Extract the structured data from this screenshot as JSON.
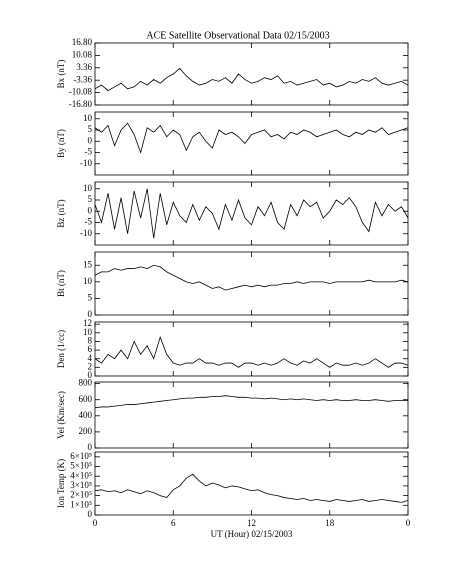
{
  "chart_data": [
    {
      "type": "line",
      "title": "ACE Satellite Observational Data   02/15/2003",
      "ylabel": "Bx (nT)",
      "x": [
        0,
        0.5,
        1,
        1.5,
        2,
        2.5,
        3,
        3.5,
        4,
        4.5,
        5,
        5.5,
        6,
        6.5,
        7,
        7.5,
        8,
        8.5,
        9,
        9.5,
        10,
        10.5,
        11,
        11.5,
        12,
        12.5,
        13,
        13.5,
        14,
        14.5,
        15,
        15.5,
        16,
        16.5,
        17,
        17.5,
        18,
        18.5,
        19,
        19.5,
        20,
        20.5,
        21,
        21.5,
        22,
        22.5,
        23,
        23.5,
        24
      ],
      "values": [
        -8,
        -6,
        -9,
        -7,
        -5,
        -8,
        -7,
        -4,
        -6,
        -3,
        -5,
        -2,
        0,
        3,
        -1,
        -4,
        -6,
        -5,
        -3,
        -4,
        -2,
        -5,
        0,
        -3,
        -5,
        -4,
        -2,
        -3,
        -1,
        -5,
        -4,
        -6,
        -5,
        -4,
        -3,
        -6,
        -5,
        -7,
        -6,
        -4,
        -5,
        -3,
        -4,
        -2,
        -5,
        -6,
        -5,
        -4,
        -6
      ],
      "color": "#000000",
      "ylim": [
        -16.8,
        16.8
      ],
      "yticks": [
        {
          "value": -16.8,
          "label": "-16.80"
        },
        -10.08,
        -3.36,
        3.36,
        10.08,
        {
          "value": 16.8,
          "label": "16.80"
        }
      ]
    },
    {
      "type": "line",
      "ylabel": "By (nT)",
      "x": [
        0,
        0.5,
        1,
        1.5,
        2,
        2.5,
        3,
        3.5,
        4,
        4.5,
        5,
        5.5,
        6,
        6.5,
        7,
        7.5,
        8,
        8.5,
        9,
        9.5,
        10,
        10.5,
        11,
        11.5,
        12,
        12.5,
        13,
        13.5,
        14,
        14.5,
        15,
        15.5,
        16,
        16.5,
        17,
        17.5,
        18,
        18.5,
        19,
        19.5,
        20,
        20.5,
        21,
        21.5,
        22,
        22.5,
        23,
        23.5,
        24
      ],
      "values": [
        6,
        4,
        7,
        -2,
        5,
        8,
        3,
        -5,
        6,
        4,
        7,
        2,
        5,
        3,
        -4,
        2,
        4,
        0,
        -3,
        5,
        3,
        4,
        2,
        -1,
        3,
        4,
        5,
        2,
        3,
        1,
        4,
        3,
        5,
        4,
        2,
        3,
        4,
        5,
        3,
        2,
        4,
        3,
        5,
        4,
        6,
        3,
        4,
        5,
        6
      ],
      "color": "#000000",
      "ylim": [
        -15,
        13
      ],
      "yticks": [
        -10,
        -5,
        0,
        5,
        10
      ]
    },
    {
      "type": "line",
      "ylabel": "Bz (nT)",
      "x": [
        0,
        0.5,
        1,
        1.5,
        2,
        2.5,
        3,
        3.5,
        4,
        4.5,
        5,
        5.5,
        6,
        6.5,
        7,
        7.5,
        8,
        8.5,
        9,
        9.5,
        10,
        10.5,
        11,
        11.5,
        12,
        12.5,
        13,
        13.5,
        14,
        14.5,
        15,
        15.5,
        16,
        16.5,
        17,
        17.5,
        18,
        18.5,
        19,
        19.5,
        20,
        20.5,
        21,
        21.5,
        22,
        22.5,
        23,
        23.5,
        24
      ],
      "values": [
        3,
        -5,
        8,
        -8,
        6,
        -10,
        9,
        -3,
        10,
        -12,
        8,
        -6,
        4,
        -2,
        -5,
        3,
        -4,
        2,
        -1,
        -8,
        3,
        -4,
        5,
        -3,
        -6,
        2,
        -2,
        4,
        -5,
        -8,
        3,
        -2,
        5,
        2,
        4,
        -3,
        0,
        5,
        3,
        6,
        2,
        -5,
        -9,
        4,
        -2,
        3,
        0,
        2,
        -3
      ],
      "color": "#000000",
      "ylim": [
        -15,
        13
      ],
      "yticks": [
        -10,
        -5,
        0,
        5,
        10
      ]
    },
    {
      "type": "line",
      "ylabel": "Bt (nT)",
      "x": [
        0,
        0.5,
        1,
        1.5,
        2,
        2.5,
        3,
        3.5,
        4,
        4.5,
        5,
        5.5,
        6,
        6.5,
        7,
        7.5,
        8,
        8.5,
        9,
        9.5,
        10,
        10.5,
        11,
        11.5,
        12,
        12.5,
        13,
        13.5,
        14,
        14.5,
        15,
        15.5,
        16,
        16.5,
        17,
        17.5,
        18,
        18.5,
        19,
        19.5,
        20,
        20.5,
        21,
        21.5,
        22,
        22.5,
        23,
        23.5,
        24
      ],
      "values": [
        12,
        13,
        13,
        14,
        13.5,
        14,
        14,
        14.5,
        14,
        15,
        14.5,
        13,
        12,
        11,
        10,
        9.5,
        10,
        9,
        8,
        8.5,
        7.5,
        8,
        8.5,
        9,
        8.5,
        9,
        8.5,
        9,
        9,
        9.5,
        9.5,
        10,
        9.5,
        10,
        10,
        10,
        9.5,
        10,
        10,
        10,
        10,
        10,
        10.5,
        10,
        10,
        10,
        10,
        10.5,
        10
      ],
      "color": "#000000",
      "ylim": [
        0,
        19
      ],
      "yticks": [
        0,
        5,
        10,
        15
      ]
    },
    {
      "type": "line",
      "ylabel": "Den (1/cc)",
      "x": [
        0,
        0.5,
        1,
        1.5,
        2,
        2.5,
        3,
        3.5,
        4,
        4.5,
        5,
        5.5,
        6,
        6.5,
        7,
        7.5,
        8,
        8.5,
        9,
        9.5,
        10,
        10.5,
        11,
        11.5,
        12,
        12.5,
        13,
        13.5,
        14,
        14.5,
        15,
        15.5,
        16,
        16.5,
        17,
        17.5,
        18,
        18.5,
        19,
        19.5,
        20,
        20.5,
        21,
        21.5,
        22,
        22.5,
        23,
        23.5,
        24
      ],
      "values": [
        4,
        3,
        5,
        4,
        6,
        4,
        8,
        5,
        7,
        4,
        9,
        5,
        3,
        2.5,
        3,
        3,
        4,
        3,
        3,
        2.5,
        3,
        3,
        2,
        3,
        3,
        2.5,
        3,
        2.5,
        3,
        4,
        3,
        2.5,
        3.5,
        3,
        4,
        3,
        2,
        3,
        2.5,
        2.5,
        3,
        2.5,
        3,
        4,
        3,
        2,
        3,
        3,
        2.5
      ],
      "color": "#000000",
      "ylim": [
        0,
        12.5
      ],
      "yticks": [
        0,
        2,
        4,
        6,
        8,
        10,
        12
      ]
    },
    {
      "type": "line",
      "ylabel": "Vel (Km/sec)",
      "x": [
        0,
        0.5,
        1,
        1.5,
        2,
        2.5,
        3,
        3.5,
        4,
        4.5,
        5,
        5.5,
        6,
        6.5,
        7,
        7.5,
        8,
        8.5,
        9,
        9.5,
        10,
        10.5,
        11,
        11.5,
        12,
        12.5,
        13,
        13.5,
        14,
        14.5,
        15,
        15.5,
        16,
        16.5,
        17,
        17.5,
        18,
        18.5,
        19,
        19.5,
        20,
        20.5,
        21,
        21.5,
        22,
        22.5,
        23,
        23.5,
        24
      ],
      "values": [
        500,
        510,
        510,
        520,
        530,
        540,
        540,
        550,
        560,
        570,
        580,
        590,
        600,
        610,
        620,
        620,
        630,
        630,
        640,
        640,
        650,
        640,
        630,
        630,
        620,
        620,
        610,
        620,
        610,
        600,
        610,
        600,
        610,
        600,
        590,
        600,
        590,
        600,
        590,
        590,
        600,
        590,
        590,
        600,
        590,
        580,
        590,
        590,
        590
      ],
      "color": "#000000",
      "ylim": [
        0,
        820
      ],
      "yticks": [
        0,
        200,
        400,
        600,
        800
      ]
    },
    {
      "type": "line",
      "ylabel": "Ion Temp (K)",
      "xlabel": "UT (Hour)  02/15/2003",
      "x": [
        0,
        0.5,
        1,
        1.5,
        2,
        2.5,
        3,
        3.5,
        4,
        4.5,
        5,
        5.5,
        6,
        6.5,
        7,
        7.5,
        8,
        8.5,
        9,
        9.5,
        10,
        10.5,
        11,
        11.5,
        12,
        12.5,
        13,
        13.5,
        14,
        14.5,
        15,
        15.5,
        16,
        16.5,
        17,
        17.5,
        18,
        18.5,
        19,
        19.5,
        20,
        20.5,
        21,
        21.5,
        22,
        22.5,
        23,
        23.5,
        24
      ],
      "values": [
        250000,
        260000,
        240000,
        250000,
        230000,
        260000,
        240000,
        220000,
        250000,
        230000,
        200000,
        180000,
        260000,
        300000,
        380000,
        420000,
        350000,
        300000,
        330000,
        310000,
        280000,
        300000,
        290000,
        270000,
        250000,
        260000,
        230000,
        210000,
        200000,
        180000,
        170000,
        160000,
        170000,
        150000,
        160000,
        150000,
        140000,
        160000,
        150000,
        140000,
        150000,
        160000,
        140000,
        150000,
        160000,
        150000,
        140000,
        130000,
        150000
      ],
      "color": "#000000",
      "ylim": [
        0,
        650000
      ],
      "yticks": [
        0,
        {
          "value": 100000,
          "label": "1×10⁵"
        },
        {
          "value": 200000,
          "label": "2×10⁵"
        },
        {
          "value": 300000,
          "label": "3×10⁵"
        },
        {
          "value": 400000,
          "label": "4×10⁵"
        },
        {
          "value": 500000,
          "label": "5×10⁵"
        },
        {
          "value": 600000,
          "label": "6×10⁵"
        }
      ],
      "xlim": [
        0,
        24
      ],
      "xticks": [
        0,
        6,
        12,
        18,
        {
          "value": 24,
          "label": "0"
        }
      ]
    }
  ]
}
